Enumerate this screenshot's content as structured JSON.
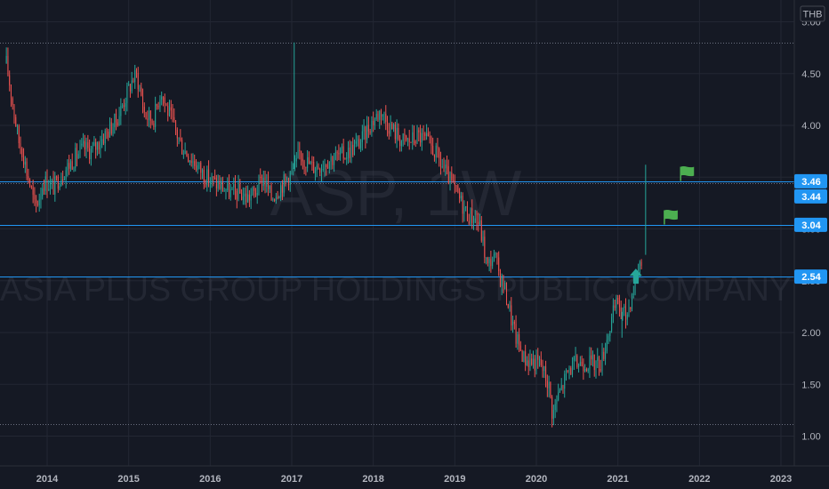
{
  "currency_label": "THB",
  "watermark": {
    "symbol": "ASP, 1W",
    "company": "ASIA PLUS GROUP HOLDINGS PUBLIC COMPANY"
  },
  "colors": {
    "background": "#151924",
    "grid": "#232733",
    "up": "#26a69a",
    "down": "#ef5350",
    "level_line": "#2196f3",
    "tag": "#2196f3",
    "flag": "#4caf50",
    "arrow": "#26a69a",
    "axis_text": "#b2b5be"
  },
  "chart_data": {
    "type": "candlestick",
    "x_axis_ticks": [
      "2014",
      "2015",
      "2016",
      "2017",
      "2018",
      "2019",
      "2020",
      "2021",
      "2022",
      "2023"
    ],
    "y_axis_ticks": [
      1.0,
      1.5,
      2.0,
      2.5,
      3.0,
      3.5,
      4.0,
      4.5,
      5.0
    ],
    "ylim": [
      0.8,
      5.1
    ],
    "xlim": [
      2013.5,
      2023.15
    ],
    "price_path": [
      [
        2013.5,
        4.6
      ],
      [
        2013.55,
        4.35
      ],
      [
        2013.6,
        4.1
      ],
      [
        2013.65,
        3.85
      ],
      [
        2013.7,
        3.75
      ],
      [
        2013.75,
        3.55
      ],
      [
        2013.8,
        3.4
      ],
      [
        2013.85,
        3.2
      ],
      [
        2013.9,
        3.3
      ],
      [
        2013.95,
        3.45
      ],
      [
        2014.0,
        3.45
      ],
      [
        2014.08,
        3.4
      ],
      [
        2014.15,
        3.5
      ],
      [
        2014.25,
        3.6
      ],
      [
        2014.35,
        3.7
      ],
      [
        2014.45,
        3.78
      ],
      [
        2014.55,
        3.75
      ],
      [
        2014.65,
        3.85
      ],
      [
        2014.75,
        3.95
      ],
      [
        2014.85,
        4.05
      ],
      [
        2014.95,
        4.25
      ],
      [
        2015.0,
        4.35
      ],
      [
        2015.05,
        4.45
      ],
      [
        2015.1,
        4.48
      ],
      [
        2015.15,
        4.3
      ],
      [
        2015.2,
        4.1
      ],
      [
        2015.3,
        4.05
      ],
      [
        2015.35,
        4.2
      ],
      [
        2015.4,
        4.35
      ],
      [
        2015.45,
        4.2
      ],
      [
        2015.55,
        4.0
      ],
      [
        2015.65,
        3.8
      ],
      [
        2015.75,
        3.7
      ],
      [
        2015.85,
        3.6
      ],
      [
        2015.95,
        3.5
      ],
      [
        2016.05,
        3.45
      ],
      [
        2016.15,
        3.4
      ],
      [
        2016.25,
        3.35
      ],
      [
        2016.35,
        3.35
      ],
      [
        2016.45,
        3.3
      ],
      [
        2016.55,
        3.35
      ],
      [
        2016.65,
        3.5
      ],
      [
        2016.7,
        3.4
      ],
      [
        2016.75,
        3.3
      ],
      [
        2016.85,
        3.4
      ],
      [
        2016.95,
        3.5
      ],
      [
        2017.05,
        3.6
      ],
      [
        2017.1,
        3.75
      ],
      [
        2017.15,
        3.68
      ],
      [
        2017.25,
        3.6
      ],
      [
        2017.35,
        3.62
      ],
      [
        2017.45,
        3.67
      ],
      [
        2017.55,
        3.7
      ],
      [
        2017.65,
        3.72
      ],
      [
        2017.75,
        3.78
      ],
      [
        2017.85,
        3.85
      ],
      [
        2017.95,
        4.0
      ],
      [
        2018.05,
        4.1
      ],
      [
        2018.1,
        4.15
      ],
      [
        2018.15,
        4.05
      ],
      [
        2018.25,
        3.95
      ],
      [
        2018.35,
        3.85
      ],
      [
        2018.45,
        3.85
      ],
      [
        2018.55,
        3.9
      ],
      [
        2018.65,
        3.85
      ],
      [
        2018.75,
        3.75
      ],
      [
        2018.85,
        3.6
      ],
      [
        2018.95,
        3.45
      ],
      [
        2019.05,
        3.3
      ],
      [
        2019.15,
        3.15
      ],
      [
        2019.25,
        3.1
      ],
      [
        2019.3,
        3.05
      ],
      [
        2019.35,
        2.85
      ],
      [
        2019.4,
        2.62
      ],
      [
        2019.45,
        2.72
      ],
      [
        2019.5,
        2.7
      ],
      [
        2019.55,
        2.55
      ],
      [
        2019.6,
        2.45
      ],
      [
        2019.65,
        2.3
      ],
      [
        2019.7,
        2.1
      ],
      [
        2019.75,
        1.95
      ],
      [
        2019.8,
        1.85
      ],
      [
        2019.85,
        1.75
      ],
      [
        2019.95,
        1.72
      ],
      [
        2020.05,
        1.7
      ],
      [
        2020.1,
        1.6
      ],
      [
        2020.15,
        1.5
      ],
      [
        2020.2,
        1.2
      ],
      [
        2020.25,
        1.35
      ],
      [
        2020.3,
        1.45
      ],
      [
        2020.35,
        1.55
      ],
      [
        2020.4,
        1.65
      ],
      [
        2020.5,
        1.7
      ],
      [
        2020.6,
        1.72
      ],
      [
        2020.7,
        1.7
      ],
      [
        2020.8,
        1.72
      ],
      [
        2020.85,
        1.9
      ],
      [
        2020.9,
        2.05
      ],
      [
        2020.95,
        2.2
      ],
      [
        2021.0,
        2.3
      ],
      [
        2021.05,
        2.2
      ],
      [
        2021.1,
        2.15
      ],
      [
        2021.15,
        2.3
      ],
      [
        2021.2,
        2.45
      ],
      [
        2021.25,
        2.62
      ],
      [
        2021.3,
        2.75
      ]
    ],
    "candles_per_year": 52,
    "spikes": [
      {
        "date": 2017.03,
        "high": 4.8
      },
      {
        "date": 2021.34,
        "high": 3.62
      },
      {
        "date": 2021.05,
        "high": 1.95
      }
    ],
    "horizontal_levels": [
      {
        "value": 4.8,
        "style": "dotted"
      },
      {
        "value": 3.46,
        "style": "solid"
      },
      {
        "value": 3.44,
        "style": "dotted"
      },
      {
        "value": 3.04,
        "style": "solid"
      },
      {
        "value": 2.54,
        "style": "solid"
      },
      {
        "value": 1.12,
        "style": "dotted"
      }
    ],
    "price_tags": [
      "3.46",
      "3.44",
      "3.04",
      "2.54"
    ],
    "annotations": [
      {
        "type": "flag",
        "date": 2021.77,
        "value": 3.6
      },
      {
        "type": "flag",
        "date": 2021.57,
        "value": 3.18
      },
      {
        "type": "arrow_up",
        "date": 2021.22,
        "value": 2.54
      }
    ]
  }
}
